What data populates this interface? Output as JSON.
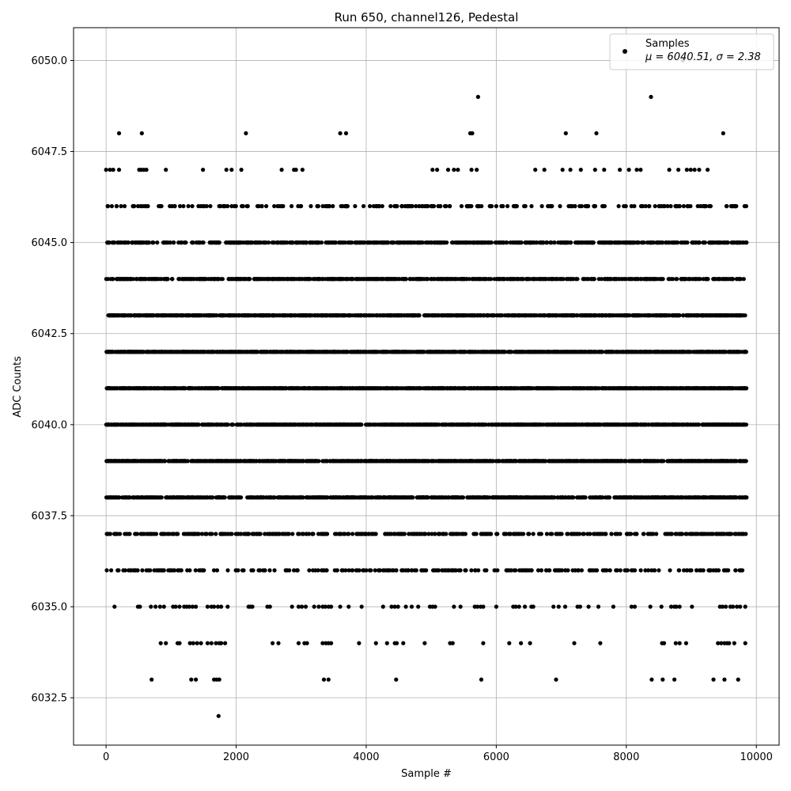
{
  "chart_data": {
    "type": "scatter",
    "title": "Run 650, channel126, Pedestal",
    "xlabel": "Sample #",
    "ylabel": "ADC Counts",
    "xlim": [
      -500,
      10350
    ],
    "ylim": [
      6031.2,
      6050.9
    ],
    "xticks": [
      0,
      2000,
      4000,
      6000,
      8000,
      10000
    ],
    "xtick_labels": [
      "0",
      "2000",
      "4000",
      "6000",
      "8000",
      "10000"
    ],
    "yticks": [
      6032.5,
      6035.0,
      6037.5,
      6040.0,
      6042.5,
      6045.0,
      6047.5,
      6050.0
    ],
    "ytick_labels": [
      "6032.5",
      "6035.0",
      "6037.5",
      "6040.0",
      "6042.5",
      "6045.0",
      "6047.5",
      "6050.0"
    ],
    "grid": true,
    "legend_position": "top-right",
    "legend": {
      "label": "Samples",
      "stats_prefix": "μ = 6040.51, ",
      "stats_suffix": "σ = 2.38"
    },
    "marker_color": "#000000",
    "n_samples": 9850,
    "x_range": [
      0,
      9849
    ],
    "series": [
      {
        "name": "Samples",
        "mean": 6040.51,
        "std": 2.38,
        "levels": [
          {
            "y": 6032,
            "x": [
              1730
            ]
          },
          {
            "y": 6033,
            "x": [
              700,
              1310,
              1380,
              1660,
              1700,
              1740,
              3350,
              3420,
              4460,
              5770,
              6920,
              8390,
              8560,
              8740,
              9340,
              9510,
              9720
            ]
          },
          {
            "y": 6034,
            "x": [
              840,
              920,
              1100,
              1130,
              1290,
              1340,
              1400,
              1460,
              1560,
              1620,
              1690,
              1740,
              1770,
              1830,
              2560,
              2650,
              2960,
              3050,
              3090,
              3330,
              3380,
              3420,
              3460,
              3890,
              4150,
              4320,
              4440,
              4470,
              4570,
              4900,
              5290,
              5330,
              5800,
              6200,
              6380,
              6520,
              7200,
              7600,
              8550,
              8580,
              8760,
              8820,
              8920,
              9410,
              9460,
              9510,
              9550,
              9580,
              9660,
              9830
            ]
          },
          {
            "y": 6035,
            "x": [
              130,
              490,
              520,
              690,
              760,
              830,
              890,
              1030,
              1070,
              1130,
              1200,
              1240,
              1280,
              1330,
              1380,
              1560,
              1620,
              1660,
              1720,
              1770,
              1870,
              2190,
              2220,
              2250,
              2480,
              2520,
              2860,
              2960,
              3010,
              3070,
              3200,
              3270,
              3330,
              3370,
              3420,
              3460,
              3600,
              3730,
              3930,
              4260,
              4390,
              4440,
              4490,
              4610,
              4700,
              4800,
              4980,
              5020,
              5060,
              5350,
              5450,
              5670,
              5710,
              5760,
              5800,
              6000,
              6260,
              6300,
              6350,
              6440,
              6540,
              6570,
              6880,
              6960,
              7060,
              7250,
              7290,
              7420,
              7570,
              7800,
              8080,
              8130,
              8370,
              8540,
              8690,
              8740,
              8770,
              8820,
              9010,
              9440,
              9480,
              9530,
              9600,
              9640,
              9700,
              9750,
              9830
            ]
          },
          {
            "y": 6036,
            "x": {
              "dense": true,
              "count": 270
            }
          },
          {
            "y": 6037,
            "x": {
              "dense": true,
              "count": 420
            }
          },
          {
            "y": 6038,
            "x": {
              "dense": true,
              "count": 1000
            }
          },
          {
            "y": 6039,
            "x": {
              "dense": true,
              "count": 1150
            }
          },
          {
            "y": 6040,
            "x": {
              "dense": true,
              "count": 1300
            }
          },
          {
            "y": 6041,
            "x": {
              "dense": true,
              "count": 1450
            }
          },
          {
            "y": 6042,
            "x": {
              "dense": true,
              "count": 1350
            }
          },
          {
            "y": 6043,
            "x": {
              "dense": true,
              "count": 1050
            }
          },
          {
            "y": 6044,
            "x": {
              "dense": true,
              "count": 700
            }
          },
          {
            "y": 6045,
            "x": {
              "dense": true,
              "count": 650
            }
          },
          {
            "y": 6046,
            "x": {
              "dense": true,
              "count": 230
            }
          },
          {
            "y": 6047,
            "x": [
              0,
              60,
              110,
              200,
              510,
              540,
              580,
              620,
              920,
              1490,
              1850,
              1930,
              2080,
              2700,
              2890,
              2920,
              3020,
              5020,
              5090,
              5260,
              5350,
              5410,
              5620,
              5700,
              6600,
              6740,
              7020,
              7140,
              7300,
              7520,
              7660,
              7900,
              8040,
              8160,
              8220,
              8660,
              8800,
              8930,
              8990,
              9050,
              9120,
              9250
            ]
          },
          {
            "y": 6048,
            "x": [
              200,
              550,
              2150,
              3600,
              3690,
              5600,
              5630,
              7070,
              7540,
              9490
            ]
          },
          {
            "y": 6049,
            "x": [
              5720,
              8380
            ]
          },
          {
            "y": 6050,
            "x": [
              8870
            ]
          }
        ]
      }
    ]
  }
}
